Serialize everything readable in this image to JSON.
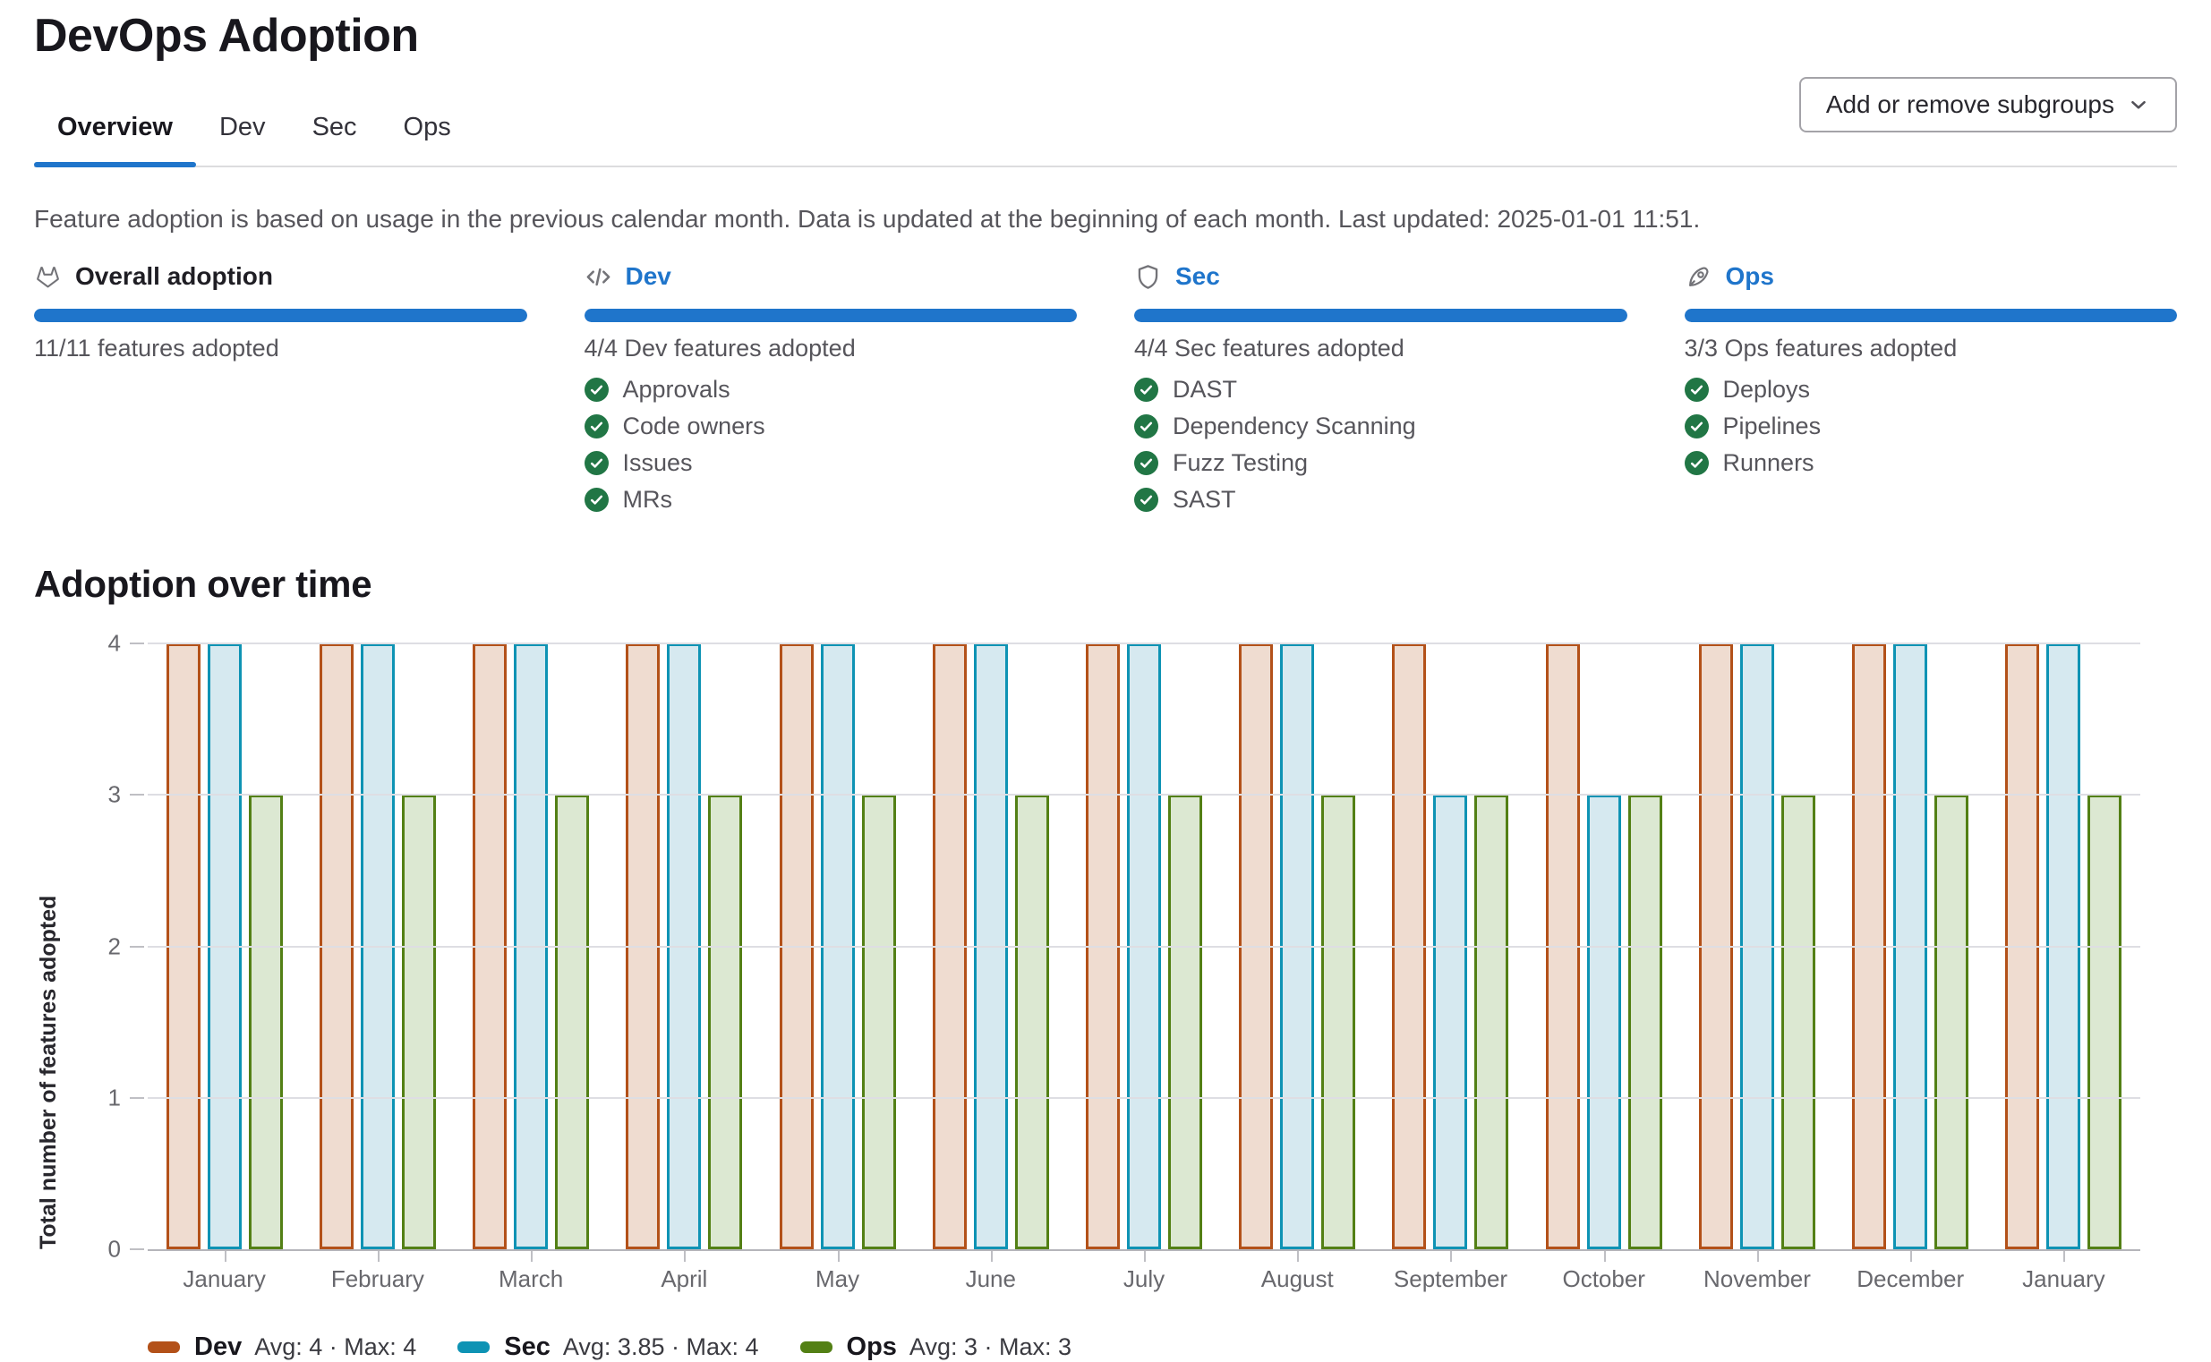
{
  "page": {
    "title": "DevOps Adoption"
  },
  "tabs": [
    {
      "label": "Overview",
      "active": true
    },
    {
      "label": "Dev",
      "active": false
    },
    {
      "label": "Sec",
      "active": false
    },
    {
      "label": "Ops",
      "active": false
    }
  ],
  "toolbar": {
    "button_label": "Add or remove subgroups",
    "chevron_icon": "chevron-down-icon"
  },
  "info": {
    "text": "Feature adoption is based on usage in the previous calendar month. Data is updated at the beginning of each month. Last updated: 2025-01-01 11:51."
  },
  "cards": [
    {
      "icon": "tanuki-icon",
      "title": "Overall adoption",
      "is_link": false,
      "progress_pct": 100,
      "progress_label": "11/11 features adopted",
      "features": []
    },
    {
      "icon": "code-icon",
      "title": "Dev",
      "is_link": true,
      "progress_pct": 100,
      "progress_label": "4/4 Dev features adopted",
      "features": [
        "Approvals",
        "Code owners",
        "Issues",
        "MRs"
      ]
    },
    {
      "icon": "shield-icon",
      "title": "Sec",
      "is_link": true,
      "progress_pct": 100,
      "progress_label": "4/4 Sec features adopted",
      "features": [
        "DAST",
        "Dependency Scanning",
        "Fuzz Testing",
        "SAST"
      ]
    },
    {
      "icon": "rocket-icon",
      "title": "Ops",
      "is_link": true,
      "progress_pct": 100,
      "progress_label": "3/3 Ops features adopted",
      "features": [
        "Deploys",
        "Pipelines",
        "Runners"
      ]
    }
  ],
  "chart": {
    "heading": "Adoption over time"
  },
  "chart_data": {
    "type": "bar",
    "title": "Adoption over time",
    "categories": [
      "January",
      "February",
      "March",
      "April",
      "May",
      "June",
      "July",
      "August",
      "September",
      "October",
      "November",
      "December",
      "January"
    ],
    "series": [
      {
        "name": "Dev",
        "values": [
          4,
          4,
          4,
          4,
          4,
          4,
          4,
          4,
          4,
          4,
          4,
          4,
          4
        ],
        "avg": 4,
        "max": 4,
        "stats_label": "Avg: 4 · Max: 4",
        "border_color": "#b35119",
        "fill_color": "#efdcd0"
      },
      {
        "name": "Sec",
        "values": [
          4,
          4,
          4,
          4,
          4,
          4,
          4,
          4,
          3,
          3,
          4,
          4,
          4
        ],
        "avg": 3.85,
        "max": 4,
        "stats_label": "Avg: 3.85 · Max: 4",
        "border_color": "#0e93b4",
        "fill_color": "#d6e9f0"
      },
      {
        "name": "Ops",
        "values": [
          3,
          3,
          3,
          3,
          3,
          3,
          3,
          3,
          3,
          3,
          3,
          3,
          3
        ],
        "avg": 3,
        "max": 3,
        "stats_label": "Avg: 3 · Max: 3",
        "border_color": "#538015",
        "fill_color": "#dce8d2"
      }
    ],
    "xlabel": "",
    "ylabel": "Total number of features adopted",
    "ylim": [
      0,
      4
    ],
    "yticks": [
      0,
      1,
      2,
      3,
      4
    ],
    "grid": true,
    "legend_position": "bottom"
  },
  "colors": {
    "accent_blue": "#1f75cb",
    "success_green": "#217645",
    "gridline": "#dedee3",
    "axis_line": "#b5b5ba"
  }
}
